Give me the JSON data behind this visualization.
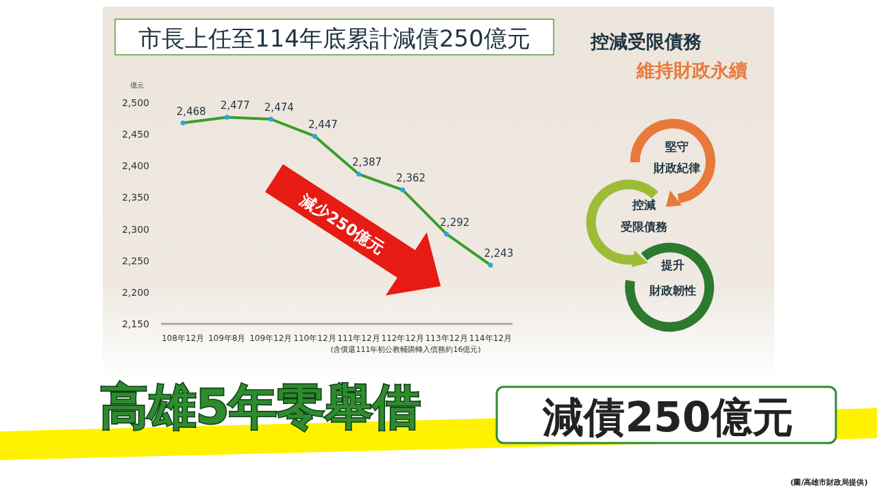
{
  "chart_data": {
    "type": "line",
    "title": "市長上任至114年底累計減債250億元",
    "ylabel": "億元",
    "categories": [
      "108年12月",
      "109年8月",
      "109年12月",
      "110年12月",
      "111年12月",
      "112年12月",
      "113年12月",
      "114年12月"
    ],
    "series": [
      {
        "color": "#3a9e2a",
        "values": [
          2468,
          2477,
          2474,
          2447,
          2387,
          2362,
          2292,
          2243
        ],
        "value_labels": [
          "2,468",
          "2,477",
          "2,474",
          "2,447",
          "2,387",
          "2,362",
          "2,292",
          "2,243"
        ]
      }
    ],
    "ylim": [
      2150,
      2500
    ],
    "yticks": [
      {
        "value": 2150,
        "label": "2,150"
      },
      {
        "value": 2200,
        "label": "2,200"
      },
      {
        "value": 2250,
        "label": "2,250"
      },
      {
        "value": 2300,
        "label": "2,300"
      },
      {
        "value": 2350,
        "label": "2,350"
      },
      {
        "value": 2400,
        "label": "2,400"
      },
      {
        "value": 2450,
        "label": "2,450"
      },
      {
        "value": 2500,
        "label": "2,500"
      }
    ],
    "marker": "circle",
    "grid": false,
    "annotations": [
      "控減受限債務",
      "維持財政永續",
      "減少250億元",
      "堅守",
      "財政紀律",
      "控減",
      "受限債務",
      "提升",
      "財政韌性",
      "(含償還111年初公教輔購轉入債務約16億元)",
      "高雄5年零舉借",
      "減債250億元",
      "(圖/高雄市財政局提供)"
    ]
  }
}
